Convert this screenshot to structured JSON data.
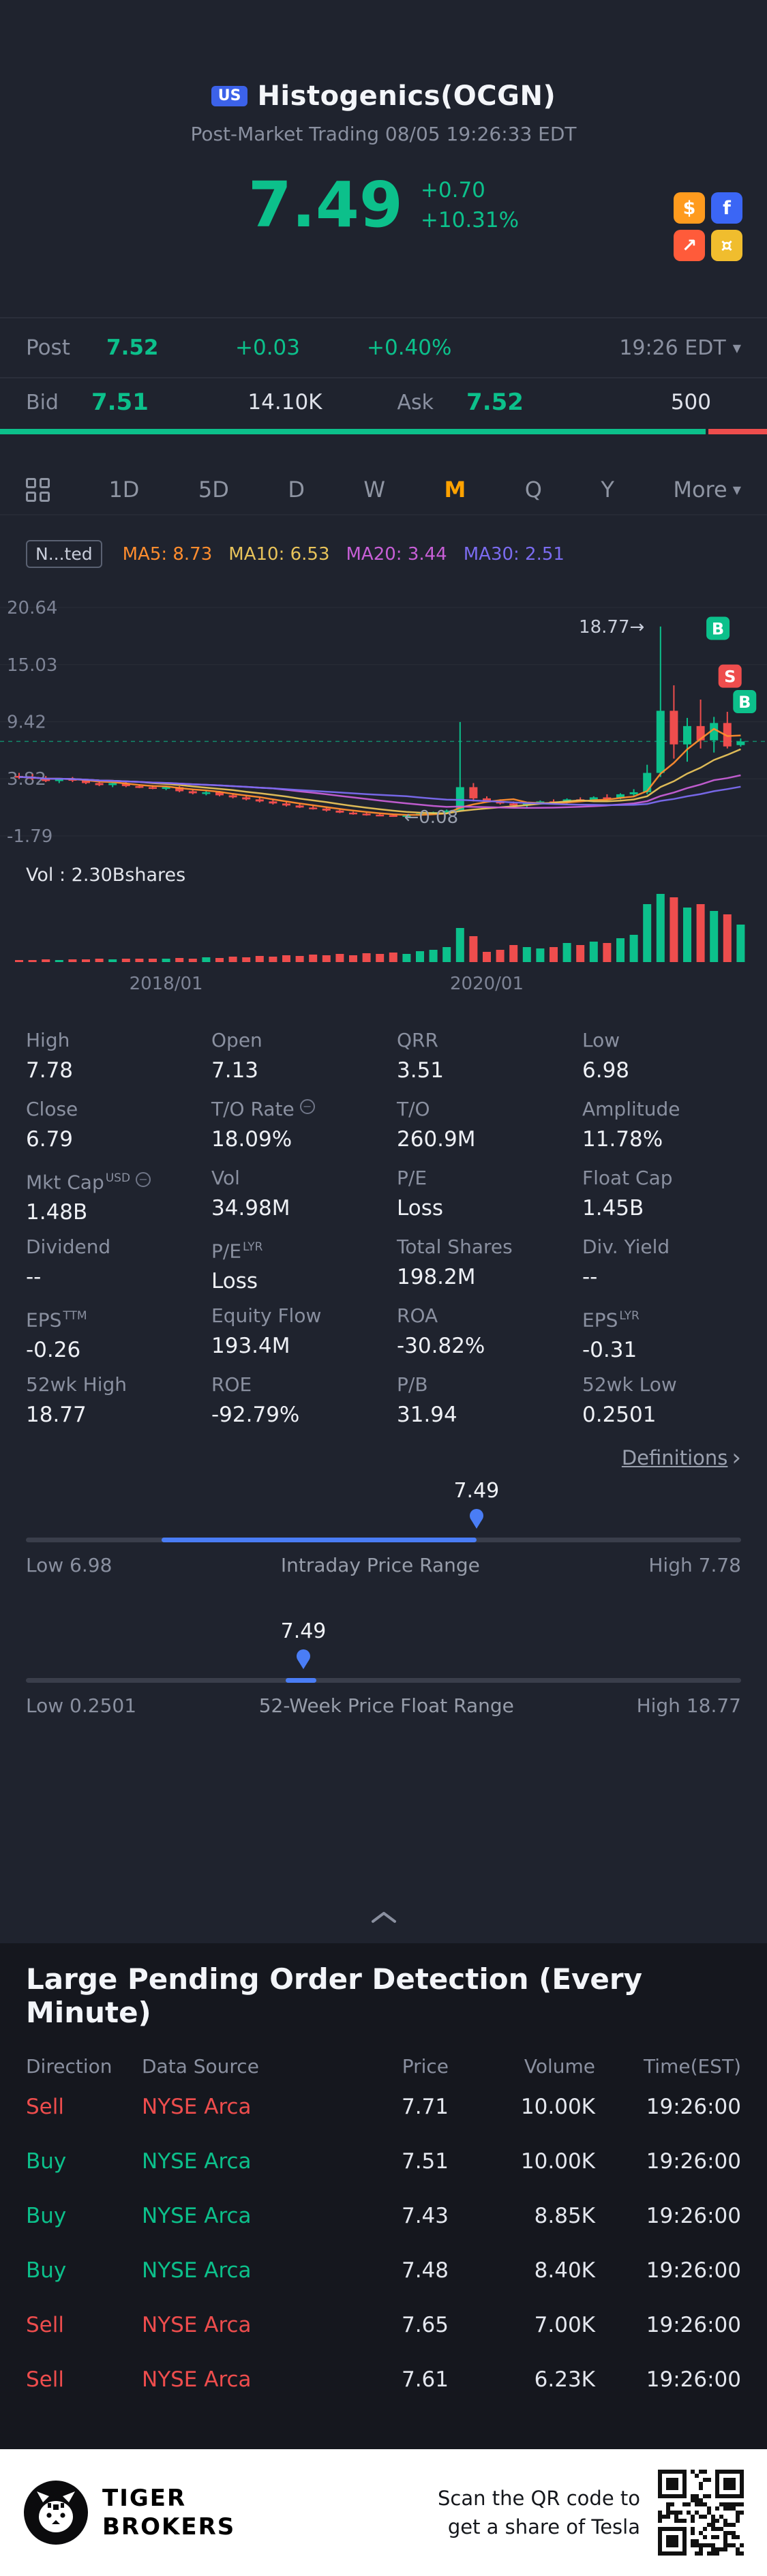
{
  "colors": {
    "up": "#0cc08b",
    "down": "#ee4d4d",
    "accent": "#ffa200",
    "blue": "#4a7df5"
  },
  "header": {
    "country_badge": "US",
    "title": "Histogenics(OCGN)",
    "subtitle": "Post-Market Trading 08/05 19:26:33 EDT",
    "price": "7.49",
    "change": "+0.70",
    "change_pct": "+10.31%",
    "promo_icons": [
      {
        "name": "dollar-coupon-icon",
        "bg": "#ff9b1e",
        "glyph": "$"
      },
      {
        "name": "facebook-share-icon",
        "bg": "#3b66f5",
        "glyph": "f"
      },
      {
        "name": "stock-chart-icon",
        "bg": "#ff5b3a",
        "glyph": "↗"
      },
      {
        "name": "rewards-coin-icon",
        "bg": "#f0bd2e",
        "glyph": "¤"
      }
    ]
  },
  "post_bar": {
    "label": "Post",
    "price": "7.52",
    "change": "+0.03",
    "change_pct": "+0.40%",
    "time": "19:26 EDT"
  },
  "quote": {
    "bid_label": "Bid",
    "bid_price": "7.51",
    "bid_size": "14.10K",
    "ask_label": "Ask",
    "ask_price": "7.52",
    "ask_size": "500",
    "bid_ratio_pct": 92
  },
  "tabs": {
    "items": [
      "1D",
      "5D",
      "D",
      "W",
      "M",
      "Q",
      "Y"
    ],
    "active": "M",
    "more_label": "More"
  },
  "chart": {
    "adjust_chip": "N...ted",
    "ma_legend": [
      {
        "label": "MA5: 8.73",
        "color": "#ff8d2e"
      },
      {
        "label": "MA10: 6.53",
        "color": "#e8c35a"
      },
      {
        "label": "MA20: 3.44",
        "color": "#c75fd6"
      },
      {
        "label": "MA30: 2.51",
        "color": "#7b6cf0"
      }
    ],
    "vol_label": "Vol : 2.30Bshares"
  },
  "chart_data": {
    "type": "candlestick",
    "period": "monthly",
    "title": "OCGN monthly candles",
    "y_range": [
      -1.79,
      20.64
    ],
    "y_axis_labels": [
      "20.64",
      "15.03",
      "9.42",
      "3.82",
      "-1.79"
    ],
    "x_ticks": [
      {
        "index": 11,
        "label": "2018/01"
      },
      {
        "index": 35,
        "label": "2020/01"
      }
    ],
    "current_price": 7.49,
    "ma": [
      {
        "window": 5,
        "color": "#ff8d2e"
      },
      {
        "window": 10,
        "color": "#e8c35a"
      },
      {
        "window": 20,
        "color": "#c75fd6"
      },
      {
        "window": 30,
        "color": "#7b6cf0"
      }
    ],
    "annotations": [
      {
        "text": "18.77→",
        "index": 46.8,
        "value": 18.77,
        "anchor": "end",
        "color": "#c9cedb"
      },
      {
        "text": "←0.08",
        "index": 28.8,
        "value": 0.08,
        "anchor": "start",
        "color": "#9aa0ae"
      }
    ],
    "markers": [
      {
        "label": "B",
        "dir": "up",
        "index": 52.3,
        "value": 18.6
      },
      {
        "label": "S",
        "dir": "down",
        "index": 53.2,
        "value": 13.9
      },
      {
        "label": "B",
        "dir": "up",
        "index": 54.3,
        "value": 11.4
      }
    ],
    "candles": [
      [
        4.1,
        4.4,
        3.8,
        4.0,
        0.03
      ],
      [
        4.0,
        4.3,
        3.7,
        3.9,
        0.03
      ],
      [
        3.9,
        4.1,
        3.5,
        3.6,
        0.04
      ],
      [
        3.6,
        3.9,
        3.4,
        3.8,
        0.03
      ],
      [
        3.8,
        4.0,
        3.5,
        3.7,
        0.04
      ],
      [
        3.7,
        3.8,
        3.3,
        3.4,
        0.04
      ],
      [
        3.4,
        3.6,
        3.1,
        3.2,
        0.05
      ],
      [
        3.2,
        3.5,
        3.0,
        3.4,
        0.04
      ],
      [
        3.4,
        3.5,
        3.0,
        3.1,
        0.05
      ],
      [
        3.1,
        3.3,
        2.9,
        3.0,
        0.05
      ],
      [
        3.0,
        3.2,
        2.8,
        2.9,
        0.05
      ],
      [
        2.9,
        3.1,
        2.7,
        3.0,
        0.05
      ],
      [
        3.0,
        3.1,
        2.5,
        2.6,
        0.06
      ],
      [
        2.6,
        2.8,
        2.3,
        2.4,
        0.05
      ],
      [
        2.4,
        2.7,
        2.2,
        2.5,
        0.07
      ],
      [
        2.5,
        2.6,
        2.1,
        2.2,
        0.06
      ],
      [
        2.2,
        2.4,
        1.9,
        2.0,
        0.08
      ],
      [
        2.0,
        2.2,
        1.7,
        1.8,
        0.07
      ],
      [
        1.8,
        2.0,
        1.5,
        1.6,
        0.09
      ],
      [
        1.6,
        1.8,
        1.3,
        1.4,
        0.08
      ],
      [
        1.4,
        1.6,
        1.1,
        1.2,
        0.1
      ],
      [
        1.2,
        1.4,
        0.95,
        1.0,
        0.09
      ],
      [
        1.0,
        1.2,
        0.8,
        0.9,
        0.11
      ],
      [
        0.9,
        1.0,
        0.6,
        0.7,
        0.1
      ],
      [
        0.7,
        0.8,
        0.45,
        0.5,
        0.12
      ],
      [
        0.5,
        0.6,
        0.3,
        0.4,
        0.1
      ],
      [
        0.4,
        0.5,
        0.2,
        0.3,
        0.13
      ],
      [
        0.3,
        0.4,
        0.15,
        0.25,
        0.12
      ],
      [
        0.25,
        0.35,
        0.08,
        0.2,
        0.14
      ],
      [
        0.2,
        0.3,
        0.12,
        0.25,
        0.12
      ],
      [
        0.25,
        0.45,
        0.2,
        0.4,
        0.16
      ],
      [
        0.4,
        0.6,
        0.35,
        0.55,
        0.18
      ],
      [
        0.55,
        0.8,
        0.5,
        0.7,
        0.22
      ],
      [
        0.7,
        9.4,
        0.6,
        3.0,
        0.5
      ],
      [
        3.0,
        3.4,
        1.6,
        1.9,
        0.38
      ],
      [
        1.9,
        2.1,
        1.5,
        1.6,
        0.15
      ],
      [
        1.6,
        1.8,
        1.3,
        1.4,
        0.18
      ],
      [
        1.4,
        1.6,
        1.1,
        1.2,
        0.25
      ],
      [
        1.2,
        1.5,
        1.0,
        1.4,
        0.22
      ],
      [
        1.4,
        1.7,
        1.3,
        1.6,
        0.2
      ],
      [
        1.6,
        1.8,
        1.4,
        1.5,
        0.22
      ],
      [
        1.5,
        1.9,
        1.4,
        1.8,
        0.28
      ],
      [
        1.8,
        2.0,
        1.6,
        1.7,
        0.25
      ],
      [
        1.7,
        2.1,
        1.6,
        2.0,
        0.3
      ],
      [
        2.0,
        2.3,
        1.8,
        1.9,
        0.28
      ],
      [
        1.9,
        2.4,
        1.8,
        2.3,
        0.35
      ],
      [
        2.3,
        2.8,
        2.1,
        2.5,
        0.4
      ],
      [
        2.5,
        5.2,
        2.3,
        4.4,
        0.85
      ],
      [
        4.4,
        18.77,
        4.0,
        10.5,
        1.0
      ],
      [
        10.5,
        13.0,
        5.8,
        7.2,
        0.95
      ],
      [
        7.2,
        9.8,
        5.5,
        9.0,
        0.8
      ],
      [
        9.0,
        11.6,
        6.8,
        7.6,
        0.85
      ],
      [
        7.6,
        9.9,
        6.4,
        9.3,
        0.75
      ],
      [
        9.3,
        10.4,
        6.8,
        7.0,
        0.7
      ],
      [
        7.13,
        7.78,
        6.98,
        7.49,
        0.55
      ]
    ]
  },
  "stats": {
    "definitions_label": "Definitions",
    "cells": [
      {
        "label": "High",
        "value": "7.78"
      },
      {
        "label": "Open",
        "value": "7.13"
      },
      {
        "label": "QRR",
        "value": "3.51"
      },
      {
        "label": "Low",
        "value": "6.98"
      },
      {
        "label": "Close",
        "value": "6.79"
      },
      {
        "label": "T/O Rate",
        "icon": true,
        "value": "18.09%"
      },
      {
        "label": "T/O",
        "value": "260.9M"
      },
      {
        "label": "Amplitude",
        "value": "11.78%"
      },
      {
        "label": "Mkt Cap",
        "sup": "USD",
        "icon": true,
        "value": "1.48B"
      },
      {
        "label": "Vol",
        "value": "34.98M"
      },
      {
        "label": "P/E",
        "value": "Loss"
      },
      {
        "label": "Float Cap",
        "value": "1.45B"
      },
      {
        "label": "Dividend",
        "value": "--"
      },
      {
        "label": "P/E",
        "sup": "LYR",
        "value": "Loss"
      },
      {
        "label": "Total Shares",
        "value": "198.2M"
      },
      {
        "label": "Div. Yield",
        "value": "--"
      },
      {
        "label": "EPS",
        "sup": "TTM",
        "value": "-0.26"
      },
      {
        "label": "Equity Flow",
        "value": "193.4M"
      },
      {
        "label": "ROA",
        "value": "-30.82%"
      },
      {
        "label": "EPS",
        "sup": "LYR",
        "value": "-0.31"
      },
      {
        "label": "52wk High",
        "value": "18.77"
      },
      {
        "label": "ROE",
        "value": "-92.79%"
      },
      {
        "label": "P/B",
        "value": "31.94"
      },
      {
        "label": "52wk Low",
        "value": "0.2501"
      }
    ]
  },
  "sliders": [
    {
      "id": "intraday",
      "value": "7.49",
      "low_label": "Low 6.98",
      "title": "Intraday Price Range",
      "high_label": "High 7.78",
      "pin_pct": 63.0,
      "fill_start_pct": 19.0,
      "fill_end_pct": 63.0
    },
    {
      "id": "week52",
      "value": "7.49",
      "low_label": "Low 0.2501",
      "title": "52-Week Price Float Range",
      "high_label": "High 18.77",
      "pin_pct": 38.8,
      "fill_start_pct": 36.3,
      "fill_end_pct": 40.6
    }
  ],
  "orders": {
    "title": "Large Pending Order Detection (Every Minute)",
    "headers": [
      "Direction",
      "Data Source",
      "Price",
      "Volume",
      "Time(EST)"
    ],
    "rows": [
      {
        "direction": "Sell",
        "source": "NYSE Arca",
        "price": "7.71",
        "volume": "10.00K",
        "time": "19:26:00"
      },
      {
        "direction": "Buy",
        "source": "NYSE Arca",
        "price": "7.51",
        "volume": "10.00K",
        "time": "19:26:00"
      },
      {
        "direction": "Buy",
        "source": "NYSE Arca",
        "price": "7.43",
        "volume": "8.85K",
        "time": "19:26:00"
      },
      {
        "direction": "Buy",
        "source": "NYSE Arca",
        "price": "7.48",
        "volume": "8.40K",
        "time": "19:26:00"
      },
      {
        "direction": "Sell",
        "source": "NYSE Arca",
        "price": "7.65",
        "volume": "7.00K",
        "time": "19:26:00"
      },
      {
        "direction": "Sell",
        "source": "NYSE Arca",
        "price": "7.61",
        "volume": "6.23K",
        "time": "19:26:00"
      }
    ]
  },
  "footer": {
    "brand_line1": "TIGER",
    "brand_line2": "BROKERS",
    "promo_line1": "Scan the QR code to",
    "promo_line2": "get a share of Tesla"
  }
}
